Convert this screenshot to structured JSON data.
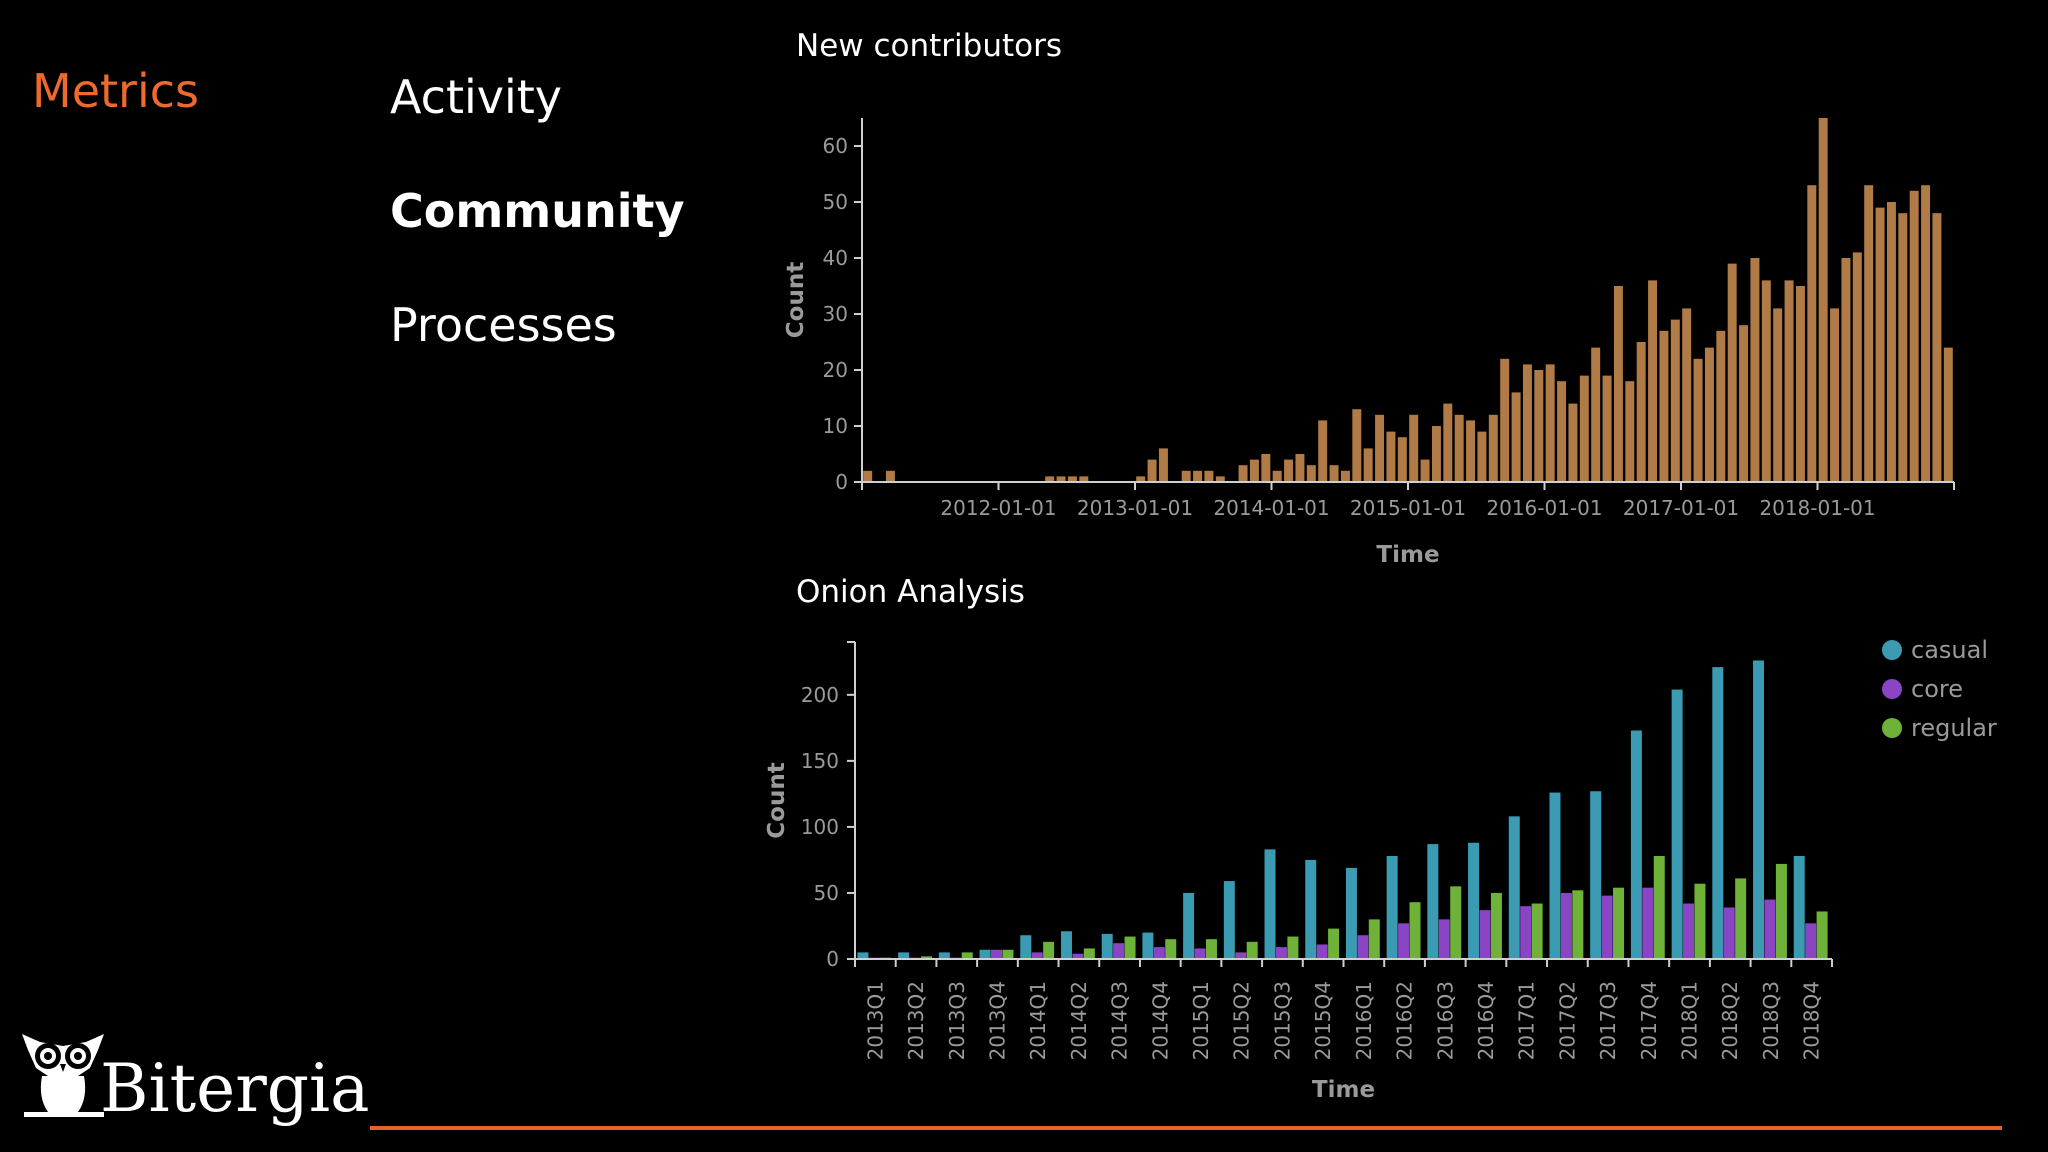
{
  "section": {
    "title": "Metrics"
  },
  "nav": {
    "items": [
      {
        "label": "Activity",
        "active": false
      },
      {
        "label": "Community",
        "active": true
      },
      {
        "label": "Processes",
        "active": false
      }
    ]
  },
  "branding": {
    "logo_text": "Bitergia",
    "accent_color": "#e8612a"
  },
  "chart_data": [
    {
      "type": "bar",
      "title": "New contributors",
      "xlabel": "Time",
      "ylabel": "Count",
      "ylim": [
        0,
        65
      ],
      "yticks": [
        0,
        10,
        20,
        30,
        40,
        50,
        60
      ],
      "x_tick_labels": [
        "2012-01-01",
        "2013-01-01",
        "2014-01-01",
        "2015-01-01",
        "2016-01-01",
        "2017-01-01",
        "2018-01-01"
      ],
      "x_start": "2011-01-01",
      "x_interval": "month",
      "color": "#b07b46",
      "values": [
        2,
        0,
        2,
        0,
        0,
        0,
        0,
        0,
        0,
        0,
        0,
        0,
        0,
        0,
        0,
        0,
        1,
        1,
        1,
        1,
        0,
        0,
        0,
        0,
        1,
        4,
        6,
        0,
        2,
        2,
        2,
        1,
        0,
        3,
        4,
        5,
        2,
        4,
        5,
        3,
        11,
        3,
        2,
        13,
        6,
        12,
        9,
        8,
        12,
        4,
        10,
        14,
        12,
        11,
        9,
        12,
        22,
        16,
        21,
        20,
        21,
        18,
        14,
        19,
        24,
        19,
        35,
        18,
        25,
        36,
        27,
        29,
        31,
        22,
        24,
        27,
        39,
        28,
        40,
        36,
        31,
        36,
        35,
        53,
        65,
        31,
        40,
        41,
        53,
        49,
        50,
        48,
        52,
        53,
        48,
        24
      ]
    },
    {
      "type": "bar",
      "title": "Onion Analysis",
      "xlabel": "Time",
      "ylabel": "Count",
      "ylim": [
        0,
        240
      ],
      "yticks": [
        0,
        50,
        100,
        150,
        200
      ],
      "categories": [
        "2013Q1",
        "2013Q2",
        "2013Q3",
        "2013Q4",
        "2014Q1",
        "2014Q2",
        "2014Q3",
        "2014Q4",
        "2015Q1",
        "2015Q2",
        "2015Q3",
        "2015Q4",
        "2016Q1",
        "2016Q2",
        "2016Q3",
        "2016Q4",
        "2017Q1",
        "2017Q2",
        "2017Q3",
        "2017Q4",
        "2018Q1",
        "2018Q2",
        "2018Q3",
        "2018Q4"
      ],
      "legend_position": "top-right",
      "series": [
        {
          "name": "casual",
          "color": "#3a9bb3",
          "values": [
            5,
            5,
            5,
            7,
            18,
            21,
            19,
            20,
            50,
            59,
            83,
            75,
            69,
            78,
            87,
            88,
            108,
            126,
            127,
            173,
            204,
            221,
            226,
            78
          ]
        },
        {
          "name": "core",
          "color": "#8a45c4",
          "values": [
            1,
            1,
            1,
            7,
            5,
            4,
            12,
            9,
            8,
            5,
            9,
            11,
            18,
            27,
            30,
            37,
            40,
            50,
            48,
            54,
            42,
            39,
            45,
            27
          ]
        },
        {
          "name": "regular",
          "color": "#6fb23a",
          "values": [
            1,
            2,
            5,
            7,
            13,
            8,
            17,
            15,
            15,
            13,
            17,
            23,
            30,
            43,
            55,
            50,
            42,
            52,
            54,
            78,
            57,
            61,
            72,
            36
          ]
        }
      ]
    }
  ]
}
